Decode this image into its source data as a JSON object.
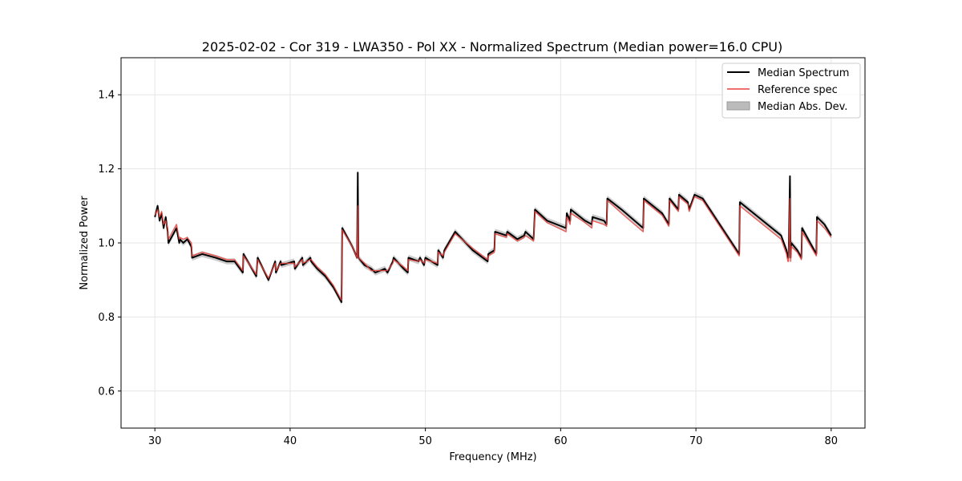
{
  "chart_data": {
    "type": "line",
    "title": "2025-02-02 - Cor 319 - LWA350 - Pol XX - Normalized Spectrum (Median power=16.0 CPU)",
    "xlabel": "Frequency (MHz)",
    "ylabel": "Normalized Power",
    "xlim": [
      27.5,
      82.5
    ],
    "ylim": [
      0.5,
      1.5
    ],
    "xticks": [
      30,
      40,
      50,
      60,
      70,
      80
    ],
    "yticks": [
      0.6,
      0.8,
      1.0,
      1.2,
      1.4
    ],
    "xtick_labels": [
      "30",
      "40",
      "50",
      "60",
      "70",
      "80"
    ],
    "ytick_labels": [
      "0.6",
      "0.8",
      "1.0",
      "1.2",
      "1.4"
    ],
    "grid": true,
    "legend_position": "top-right",
    "colors": {
      "median": "#000000",
      "reference": "#e8413c",
      "mad": "#bbbbbb"
    },
    "series": [
      {
        "name": "Median Spectrum",
        "x": [
          30.0,
          30.2,
          30.35,
          30.5,
          30.65,
          30.8,
          30.95,
          31.0,
          31.3,
          31.6,
          31.8,
          31.85,
          32.1,
          32.4,
          32.7,
          32.75,
          33.5,
          34.5,
          35.3,
          35.9,
          36.5,
          36.55,
          37.5,
          37.6,
          38.4,
          38.9,
          38.95,
          39.3,
          39.35,
          40.3,
          40.35,
          40.9,
          40.95,
          41.5,
          41.55,
          42.0,
          42.6,
          43.2,
          43.8,
          43.85,
          44.6,
          44.95,
          45.0,
          45.05,
          45.5,
          46.0,
          46.3,
          47.0,
          47.2,
          47.6,
          47.65,
          48.4,
          48.7,
          48.75,
          49.5,
          49.6,
          49.9,
          50.0,
          50.9,
          50.95,
          51.3,
          51.4,
          52.2,
          53.5,
          54.6,
          54.65,
          55.1,
          55.15,
          56.0,
          56.05,
          56.8,
          57.3,
          57.4,
          58.0,
          58.1,
          59.0,
          60.4,
          60.45,
          60.7,
          60.75,
          61.8,
          62.3,
          62.35,
          63.2,
          63.4,
          63.45,
          64.5,
          66.1,
          66.15,
          67.5,
          68.0,
          68.05,
          68.7,
          68.75,
          69.4,
          69.5,
          69.9,
          70.5,
          73.2,
          73.25,
          76.3,
          76.7,
          76.8,
          76.85,
          76.95,
          77.0,
          77.05,
          77.5,
          77.8,
          77.85,
          78.9,
          78.95,
          79.5,
          80.0
        ],
        "y": [
          1.07,
          1.1,
          1.06,
          1.08,
          1.04,
          1.07,
          1.03,
          1.0,
          1.02,
          1.04,
          1.0,
          1.01,
          1.0,
          1.01,
          0.99,
          0.96,
          0.97,
          0.96,
          0.95,
          0.95,
          0.92,
          0.97,
          0.91,
          0.96,
          0.9,
          0.95,
          0.92,
          0.95,
          0.94,
          0.95,
          0.93,
          0.96,
          0.94,
          0.96,
          0.95,
          0.93,
          0.91,
          0.88,
          0.84,
          1.04,
          0.99,
          0.96,
          1.19,
          0.96,
          0.94,
          0.93,
          0.92,
          0.93,
          0.92,
          0.95,
          0.96,
          0.93,
          0.92,
          0.96,
          0.95,
          0.96,
          0.94,
          0.96,
          0.94,
          0.98,
          0.96,
          0.98,
          1.03,
          0.98,
          0.95,
          0.97,
          0.98,
          1.03,
          1.02,
          1.03,
          1.01,
          1.02,
          1.03,
          1.01,
          1.09,
          1.06,
          1.04,
          1.08,
          1.06,
          1.09,
          1.06,
          1.05,
          1.07,
          1.06,
          1.05,
          1.12,
          1.09,
          1.04,
          1.12,
          1.08,
          1.05,
          1.12,
          1.09,
          1.13,
          1.11,
          1.09,
          1.13,
          1.12,
          0.97,
          1.11,
          1.02,
          0.98,
          0.96,
          0.96,
          1.18,
          0.96,
          1.0,
          0.98,
          0.96,
          1.04,
          0.97,
          1.07,
          1.05,
          1.02
        ]
      },
      {
        "name": "Reference spec",
        "x": [
          30.0,
          30.2,
          30.35,
          30.5,
          30.65,
          30.8,
          30.95,
          31.0,
          31.3,
          31.6,
          31.8,
          31.85,
          32.1,
          32.4,
          32.7,
          32.75,
          33.5,
          34.5,
          35.3,
          35.9,
          36.5,
          36.55,
          37.5,
          37.6,
          38.4,
          38.9,
          38.95,
          39.3,
          39.35,
          40.3,
          40.35,
          40.9,
          40.95,
          41.5,
          41.55,
          42.0,
          42.6,
          43.2,
          43.8,
          43.85,
          44.6,
          44.95,
          45.0,
          45.05,
          45.5,
          46.0,
          46.3,
          47.0,
          47.2,
          47.6,
          47.65,
          48.4,
          48.7,
          48.75,
          49.5,
          49.6,
          49.9,
          50.0,
          50.9,
          50.95,
          51.3,
          51.4,
          52.2,
          53.5,
          54.6,
          54.65,
          55.1,
          55.15,
          56.0,
          56.05,
          56.8,
          57.3,
          57.4,
          58.0,
          58.1,
          59.0,
          60.4,
          60.45,
          60.7,
          60.75,
          61.8,
          62.3,
          62.35,
          63.2,
          63.4,
          63.45,
          64.5,
          66.1,
          66.15,
          67.5,
          68.0,
          68.05,
          68.7,
          68.75,
          69.4,
          69.5,
          69.9,
          70.5,
          73.2,
          73.25,
          76.3,
          76.7,
          76.8,
          76.85,
          76.95,
          77.0,
          77.05,
          77.5,
          77.8,
          77.85,
          78.9,
          78.95,
          79.5,
          80.0
        ],
        "y": [
          1.075,
          1.09,
          1.07,
          1.085,
          1.05,
          1.06,
          1.04,
          1.01,
          1.03,
          1.05,
          1.01,
          1.015,
          1.01,
          1.015,
          1.0,
          0.965,
          0.975,
          0.965,
          0.955,
          0.955,
          0.925,
          0.965,
          0.915,
          0.955,
          0.905,
          0.945,
          0.925,
          0.945,
          0.945,
          0.945,
          0.935,
          0.955,
          0.945,
          0.955,
          0.955,
          0.935,
          0.915,
          0.885,
          0.845,
          1.035,
          0.99,
          0.96,
          1.1,
          0.96,
          0.945,
          0.925,
          0.925,
          0.925,
          0.925,
          0.945,
          0.955,
          0.935,
          0.925,
          0.955,
          0.95,
          0.955,
          0.945,
          0.955,
          0.945,
          0.975,
          0.965,
          0.975,
          1.025,
          0.985,
          0.955,
          0.965,
          0.975,
          1.025,
          1.015,
          1.025,
          1.005,
          1.015,
          1.02,
          1.005,
          1.085,
          1.055,
          1.03,
          1.07,
          1.05,
          1.08,
          1.055,
          1.04,
          1.06,
          1.05,
          1.045,
          1.115,
          1.08,
          1.03,
          1.115,
          1.075,
          1.045,
          1.115,
          1.085,
          1.125,
          1.105,
          1.085,
          1.125,
          1.115,
          0.965,
          1.1,
          1.01,
          0.97,
          0.95,
          0.95,
          1.12,
          0.95,
          0.99,
          0.975,
          0.955,
          1.03,
          0.965,
          1.06,
          1.04,
          1.015
        ]
      },
      {
        "name": "Median Abs. Dev.",
        "type": "band",
        "half_width": 0.008
      }
    ]
  }
}
